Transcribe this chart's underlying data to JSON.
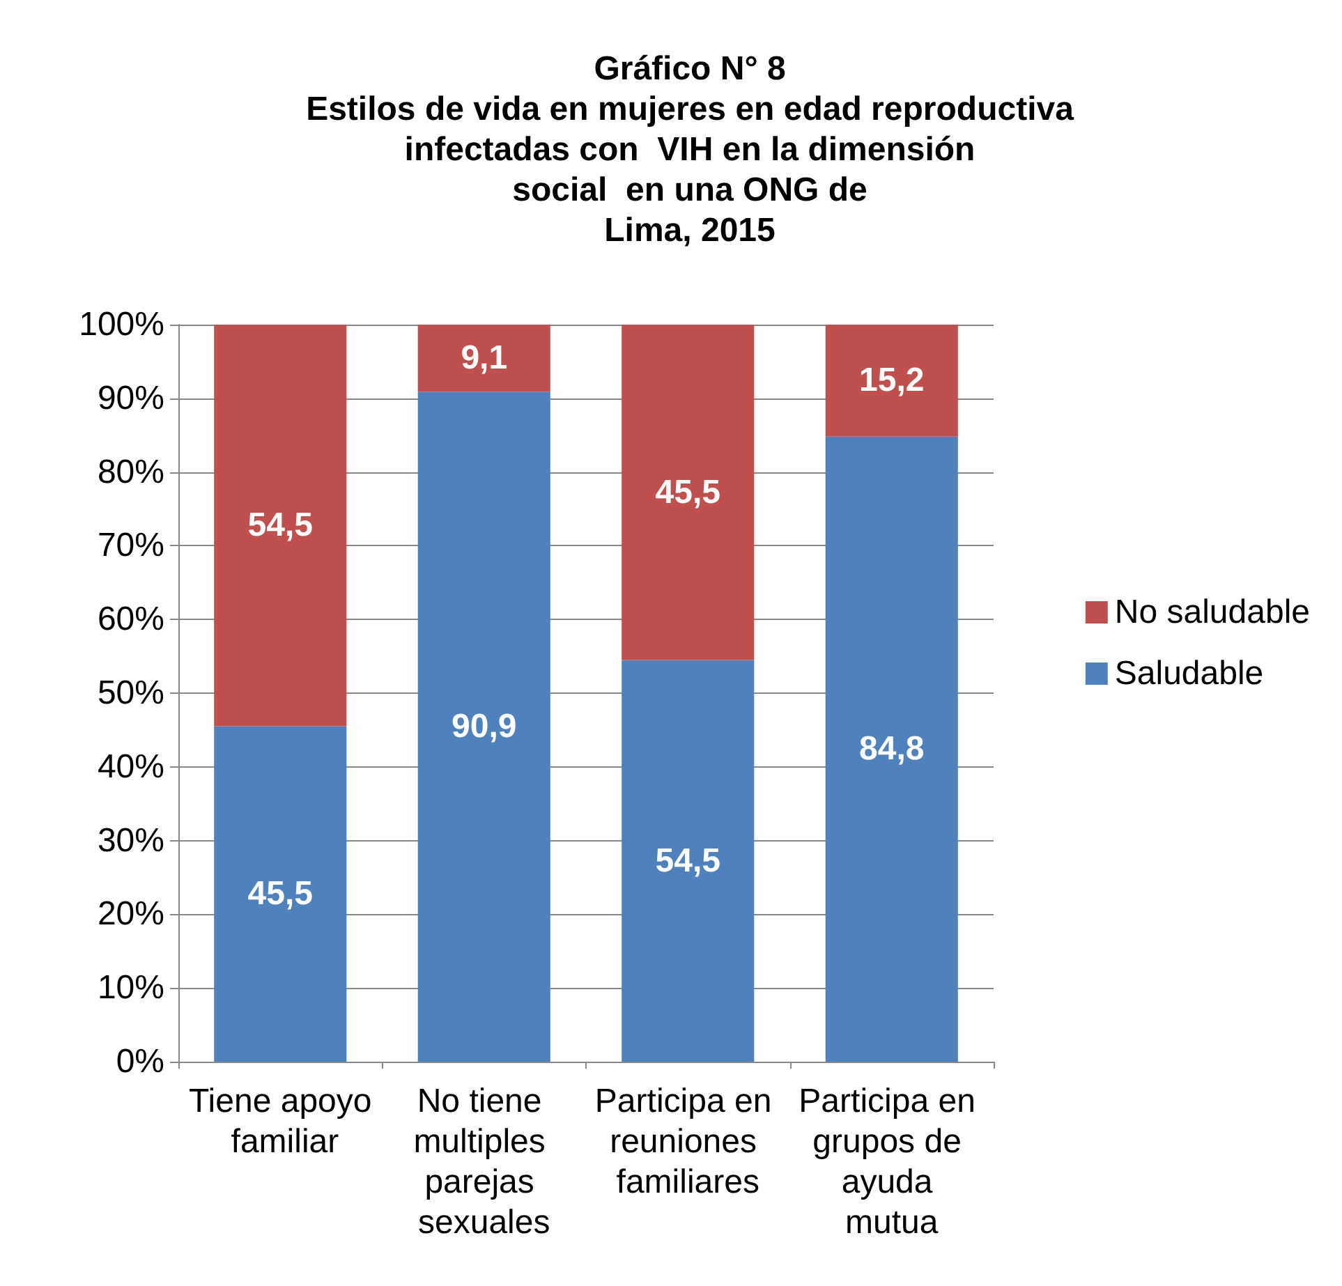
{
  "chart_data": {
    "type": "bar",
    "title": "Gráfico N° 8\nEstilos de vida en mujeres en edad reproductiva\ninfectadas con  VIH en la dimensión\nsocial  en una ONG de\nLima, 2015",
    "categories": [
      "Tiene apoyo familiar",
      "No tiene multiples parejas sexuales",
      "Participa en reuniones familiares",
      "Participa en grupos de ayuda mutua"
    ],
    "series": [
      {
        "name": "Saludable",
        "color": "#4f81bd",
        "values": [
          45.5,
          90.9,
          54.5,
          84.8
        ],
        "value_labels": [
          "45,5",
          "90,9",
          "54,5",
          "84,8"
        ]
      },
      {
        "name": "No saludable",
        "color": "#c0504d",
        "values": [
          54.5,
          9.1,
          45.5,
          15.2
        ],
        "value_labels": [
          "54,5",
          "9,1",
          "45,5",
          "15,2"
        ]
      }
    ],
    "stacked": true,
    "ylim": [
      0,
      100
    ],
    "yticks": [
      {
        "value": 0,
        "label": "0%"
      },
      {
        "value": 10,
        "label": "10%"
      },
      {
        "value": 20,
        "label": "20%"
      },
      {
        "value": 30,
        "label": "30%"
      },
      {
        "value": 40,
        "label": "40%"
      },
      {
        "value": 50,
        "label": "50%"
      },
      {
        "value": 60,
        "label": "60%"
      },
      {
        "value": 70,
        "label": "70%"
      },
      {
        "value": 80,
        "label": "80%"
      },
      {
        "value": 90,
        "label": "90%"
      },
      {
        "value": 100,
        "label": "100%"
      }
    ],
    "grid": "y",
    "legend": "right"
  }
}
